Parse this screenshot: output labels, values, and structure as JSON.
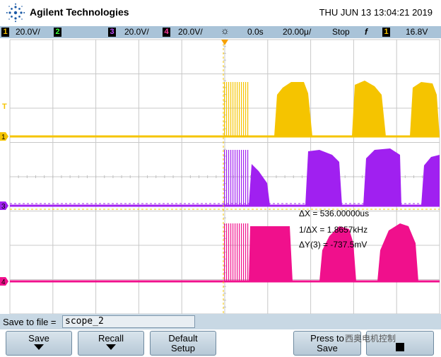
{
  "header": {
    "brand": "Agilent Technologies",
    "datetime": "THU JUN 13 13:04:21 2019"
  },
  "statusbar": {
    "ch1_num": "1",
    "ch1_scale": "20.0V/",
    "ch2_num": "2",
    "ch3_num": "3",
    "ch3_scale": "20.0V/",
    "ch4_num": "4",
    "ch4_scale": "20.0V/",
    "time_offset": "0.0s",
    "time_scale": "20.00μ/",
    "run_state": "Stop",
    "trigger_slope": "f",
    "trigger_ch": "1",
    "trigger_level": "16.8V"
  },
  "measurements": {
    "delta_x": "ΔX = 536.00000us",
    "inv_delta_x": "1/ΔX = 1.8657kHz",
    "delta_y": "ΔY(3) = -737.5mV"
  },
  "markers": {
    "ch1": "1",
    "ch3": "3",
    "ch4": "4",
    "trig": "T"
  },
  "savebar": {
    "label": "Save to file =",
    "filename": "scope_2"
  },
  "softkeys": {
    "save": "Save",
    "recall": "Recall",
    "default_1": "Default",
    "default_2": "Setup",
    "press_1": "Press to",
    "press_2": "Save"
  },
  "watermark": "西奥电机控制",
  "colors": {
    "ch1": "#f5c400",
    "ch3": "#a020f0",
    "ch4": "#f0108c",
    "status_bg": "#a9c3d8",
    "grid": "#c0c0c0"
  }
}
